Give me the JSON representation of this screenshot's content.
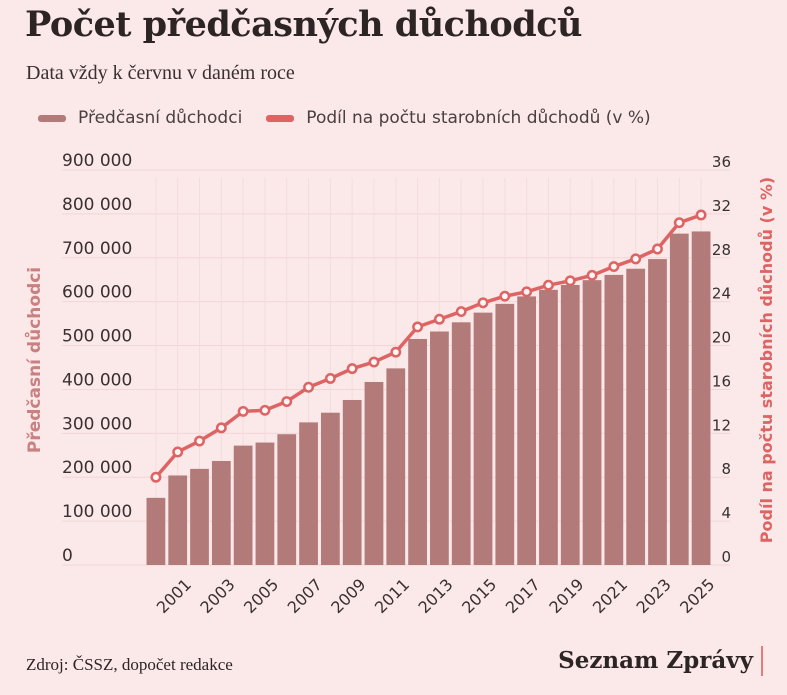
{
  "title": "Počet předčasných důchodců",
  "subtitle": "Data vždy k červnu v daném roce",
  "legend": {
    "bar_label": "Předčasní důchodci",
    "line_label": "Podíl na počtu starobních důchodů (v %)"
  },
  "source": "Zdroj: ČSSZ, dopočet redakce",
  "brand": "Seznam Zprávy",
  "colors": {
    "background": "#fbe8e8",
    "bar": "#b37a7a",
    "line": "#de6464",
    "left_axis_label": "#c98080",
    "right_axis_label": "#de6464"
  },
  "chart_data": {
    "type": "bar",
    "x_tick_labels": [
      "2001",
      "2003",
      "2005",
      "2007",
      "2009",
      "2011",
      "2013",
      "2015",
      "2017",
      "2019",
      "2021",
      "2023",
      "2025"
    ],
    "categories": [
      "2000",
      "2001",
      "2002",
      "2003",
      "2004",
      "2005",
      "2006",
      "2007",
      "2008",
      "2009",
      "2010",
      "2011",
      "2012",
      "2013",
      "2014",
      "2015",
      "2016",
      "2017",
      "2018",
      "2019",
      "2020",
      "2021",
      "2022",
      "2023",
      "2024",
      "2025"
    ],
    "series": [
      {
        "name": "Předčasní důchodci",
        "type": "bar",
        "axis": "left",
        "values": [
          153000,
          204000,
          219000,
          237000,
          272000,
          279000,
          298000,
          325000,
          347000,
          376000,
          417000,
          448000,
          515000,
          532000,
          553000,
          575000,
          595000,
          612000,
          627000,
          638000,
          649000,
          661000,
          675000,
          697000,
          755000,
          760000
        ]
      },
      {
        "name": "Podíl na počtu starobních důchodů (v %)",
        "type": "line",
        "axis": "right",
        "values": [
          8.0,
          10.3,
          11.3,
          12.5,
          14.0,
          14.1,
          14.9,
          16.2,
          17.0,
          17.9,
          18.5,
          19.4,
          21.7,
          22.4,
          23.1,
          23.9,
          24.5,
          24.9,
          25.5,
          25.9,
          26.4,
          27.2,
          27.9,
          28.8,
          31.2,
          31.9
        ]
      }
    ],
    "left_axis": {
      "label": "Předčasní důchodci",
      "ylim": [
        0,
        900000
      ],
      "ticks": [
        "0",
        "100 000",
        "200 000",
        "300 000",
        "400 000",
        "500 000",
        "600 000",
        "700 000",
        "800 000",
        "900 000"
      ]
    },
    "right_axis": {
      "label": "Podíl na počtu starobních důchodů (v %)",
      "ylim": [
        0,
        36
      ],
      "ticks": [
        "0",
        "4",
        "8",
        "12",
        "16",
        "20",
        "24",
        "28",
        "32",
        "36"
      ]
    },
    "grid": true,
    "legend_position": "top"
  }
}
